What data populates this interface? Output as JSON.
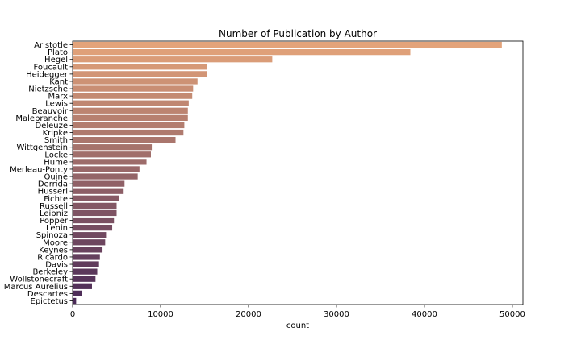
{
  "chart_data": {
    "type": "bar",
    "orientation": "horizontal",
    "title": "Number of Publication by Author",
    "xlabel": "count",
    "ylabel": "",
    "xlim": [
      0,
      51200
    ],
    "xticks": [
      0,
      10000,
      20000,
      30000,
      40000,
      50000
    ],
    "grid": false,
    "legend": "none",
    "palette": "flare",
    "color_start": "#e3a37a",
    "color_end": "#4a2a57",
    "categories": [
      "Aristotle",
      "Plato",
      "Hegel",
      "Foucault",
      "Heidegger",
      "Kant",
      "Nietzsche",
      "Marx",
      "Lewis",
      "Beauvoir",
      "Malebranche",
      "Deleuze",
      "Kripke",
      "Smith",
      "Wittgenstein",
      "Locke",
      "Hume",
      "Merleau-Ponty",
      "Quine",
      "Derrida",
      "Husserl",
      "Fichte",
      "Russell",
      "Leibniz",
      "Popper",
      "Lenin",
      "Spinoza",
      "Moore",
      "Keynes",
      "Ricardo",
      "Davis",
      "Berkeley",
      "Wollstonecraft",
      "Marcus Aurelius",
      "Descartes",
      "Epictetus"
    ],
    "values": [
      48800,
      38400,
      22700,
      15300,
      15300,
      14200,
      13700,
      13600,
      13200,
      13100,
      13100,
      12700,
      12600,
      11700,
      9000,
      8900,
      8400,
      7600,
      7400,
      5900,
      5800,
      5300,
      5000,
      5000,
      4700,
      4500,
      3800,
      3700,
      3400,
      3100,
      3000,
      2800,
      2600,
      2200,
      1100,
      400
    ]
  }
}
